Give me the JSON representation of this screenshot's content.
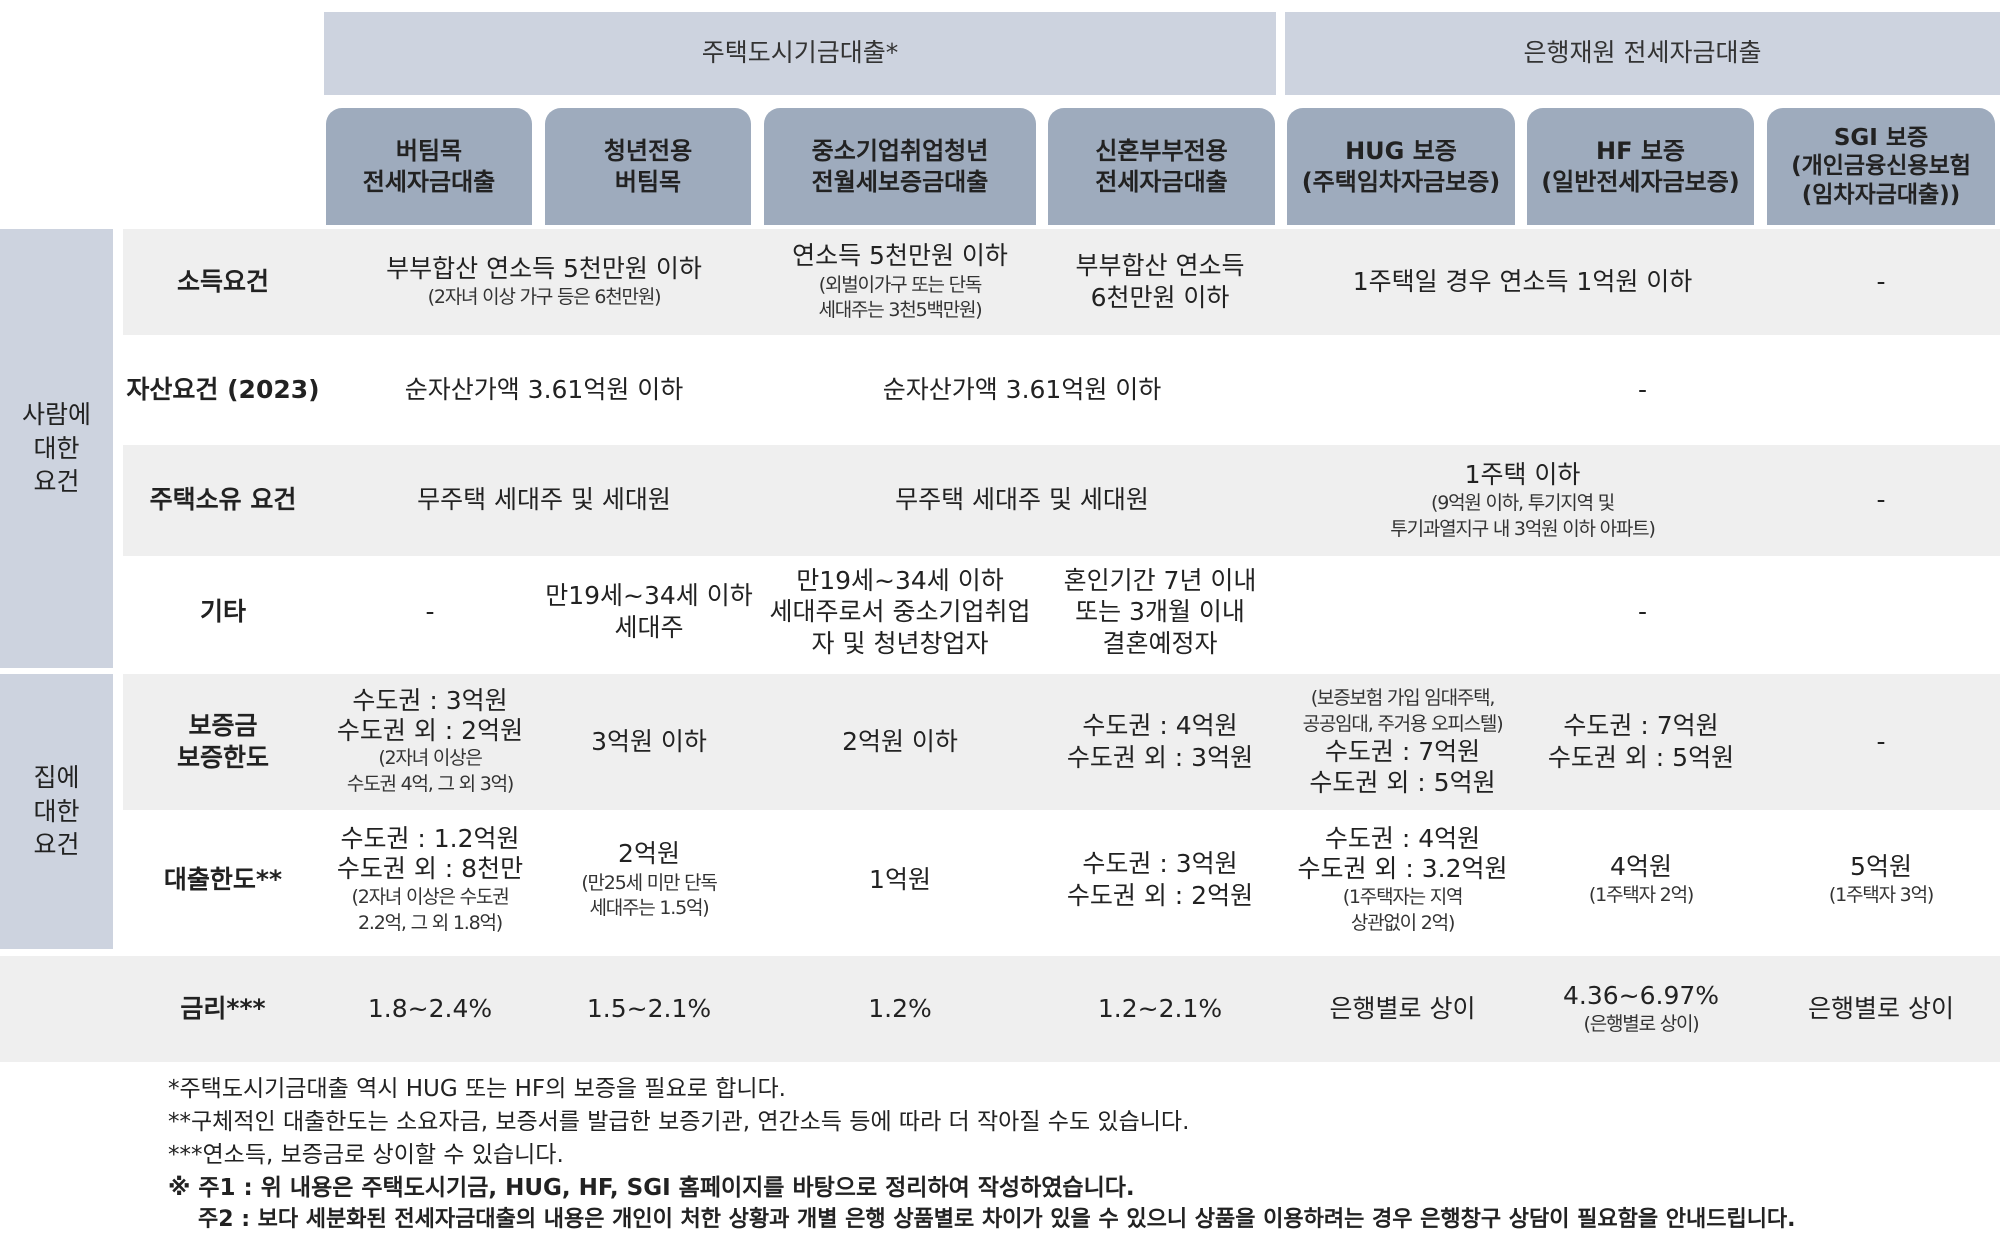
{
  "groups": {
    "housing_fund": "주택도시기금대출*",
    "bank_fund": "은행재원 전세자금대출"
  },
  "columns": {
    "c1": [
      "버팀목",
      "전세자금대출"
    ],
    "c2": [
      "청년전용",
      "버팀목"
    ],
    "c3": [
      "중소기업취업청년",
      "전월세보증금대출"
    ],
    "c4": [
      "신혼부부전용",
      "전세자금대출"
    ],
    "c5": [
      "HUG 보증",
      "(주택임차자금보증)"
    ],
    "c6": [
      "HF 보증",
      "(일반전세자금보증)"
    ],
    "c7": [
      "SGI 보증",
      "(개인금융신용보험",
      "(임차자금대출))"
    ]
  },
  "side_labels": {
    "person": [
      "사람에",
      "대한",
      "요건"
    ],
    "house": [
      "집에",
      "대한",
      "요건"
    ]
  },
  "rows": {
    "income": {
      "label": "소득요건",
      "c12_main": "부부합산 연소득 5천만원 이하",
      "c12_sub": "(2자녀 이상 가구 등은 6천만원)",
      "c3_main": "연소득 5천만원 이하",
      "c3_sub": [
        "(외벌이가구 또는 단독",
        "세대주는 3천5백만원)"
      ],
      "c4": [
        "부부합산 연소득",
        "6천만원 이하"
      ],
      "c56": "1주택일 경우 연소득 1억원 이하",
      "c7": "-"
    },
    "asset": {
      "label": "자산요건 (2023)",
      "c12": "순자산가액 3.61억원 이하",
      "c34": "순자산가액 3.61억원 이하",
      "c57": "-"
    },
    "ownership": {
      "label": "주택소유 요건",
      "c12": "무주택 세대주 및 세대원",
      "c34": "무주택 세대주 및 세대원",
      "c56_main": "1주택 이하",
      "c56_sub": [
        "(9억원 이하, 투기지역 및",
        "투기과열지구 내 3억원 이하 아파트)"
      ],
      "c7": "-"
    },
    "other": {
      "label": "기타",
      "c1": "-",
      "c2": [
        "만19세~34세 이하",
        "세대주"
      ],
      "c3": [
        "만19세~34세 이하",
        "세대주로서 중소기업취업",
        "자 및 청년창업자"
      ],
      "c4": [
        "혼인기간 7년 이내",
        "또는 3개월 이내",
        "결혼예정자"
      ],
      "c57": "-"
    },
    "deposit": {
      "label": [
        "보증금",
        "보증한도"
      ],
      "c1_main": [
        "수도권 : 3억원",
        "수도권 외 : 2억원"
      ],
      "c1_sub": [
        "(2자녀 이상은",
        "수도권 4억, 그 외 3억)"
      ],
      "c2": "3억원 이하",
      "c3": "2억원 이하",
      "c4": [
        "수도권 : 4억원",
        "수도권 외 : 3억원"
      ],
      "c5_sub": [
        "(보증보험 가입 임대주택,",
        "공공임대, 주거용 오피스텔)"
      ],
      "c5_main": [
        "수도권 : 7억원",
        "수도권 외 : 5억원"
      ],
      "c6": [
        "수도권 : 7억원",
        "수도권 외 : 5억원"
      ],
      "c7": "-"
    },
    "loan_limit": {
      "label": "대출한도**",
      "c1_main": [
        "수도권 : 1.2억원",
        "수도권 외 : 8천만"
      ],
      "c1_sub": [
        "(2자녀 이상은 수도권",
        "2.2억, 그 외 1.8억)"
      ],
      "c2_main": "2억원",
      "c2_sub": [
        "(만25세 미만 단독",
        "세대주는 1.5억)"
      ],
      "c3": "1억원",
      "c4": [
        "수도권 : 3억원",
        "수도권 외 : 2억원"
      ],
      "c5_main": [
        "수도권 : 4억원",
        "수도권 외 : 3.2억원"
      ],
      "c5_sub": [
        "(1주택자는 지역",
        "상관없이 2억)"
      ],
      "c6_main": "4억원",
      "c6_sub": "(1주택자 2억)",
      "c7_main": "5억원",
      "c7_sub": "(1주택자 3억)"
    },
    "rate": {
      "label": "금리***",
      "c1": "1.8~2.4%",
      "c2": "1.5~2.1%",
      "c3": "1.2%",
      "c4": "1.2~2.1%",
      "c5": "은행별로 상이",
      "c6_main": "4.36~6.97%",
      "c6_sub": "(은행별로 상이)",
      "c7": "은행별로 상이"
    }
  },
  "footnotes": {
    "f1": "*주택도시기금대출 역시 HUG 또는 HF의 보증을 필요로 합니다.",
    "f2": "**구체적인 대출한도는 소요자금, 보증서를 발급한 보증기관, 연간소득 등에 따라 더 작아질 수도 있습니다.",
    "f3": "***연소득, 보증금로 상이할 수 있습니다.",
    "note1": "※ 주1 : 위 내용은 주택도시기금, HUG, HF, SGI 홈페이지를 바탕으로 정리하여 작성하였습니다.",
    "note2": "주2 : 보다 세분화된 전세자금대출의 내용은 개인이 처한 상황과 개별 은행 상품별로 차이가 있을 수 있으니 상품을 이용하려는 경우 은행창구 상담이 필요함을 안내드립니다."
  },
  "colors": {
    "group_header": "#cdd3df",
    "column_header": "#9eabbd",
    "row_band": "#efefef",
    "side_label": "#cdd3df"
  }
}
